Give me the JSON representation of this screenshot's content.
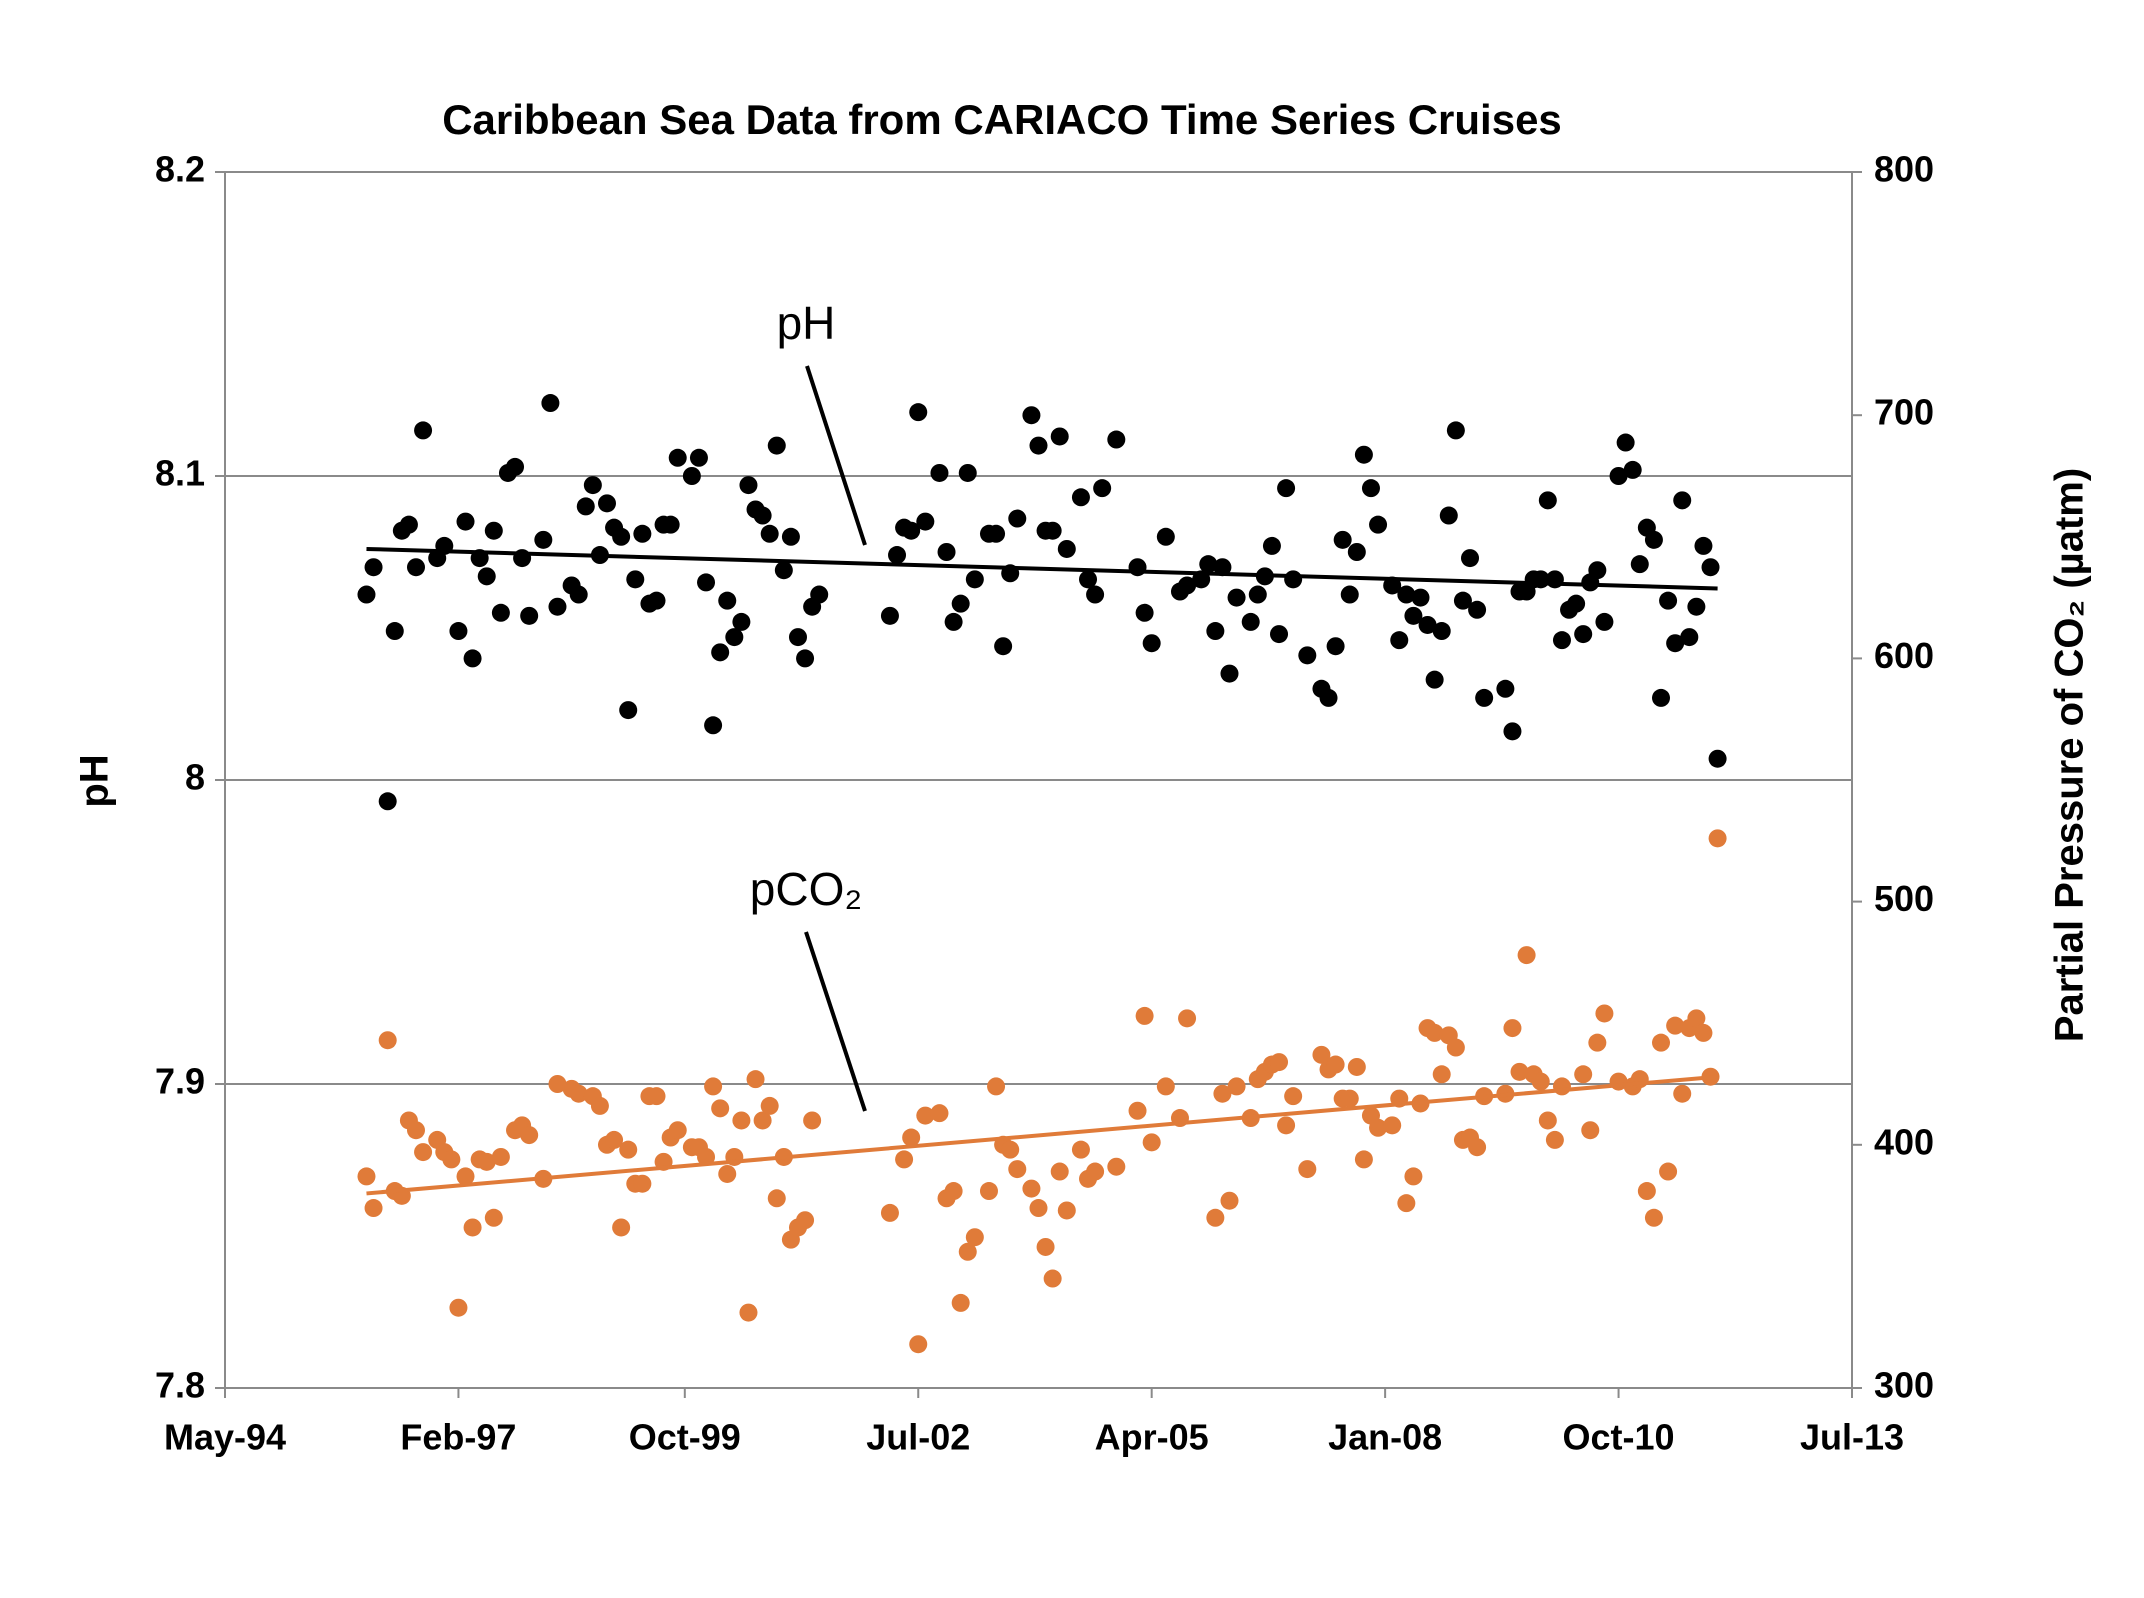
{
  "chart_data": {
    "type": "scatter",
    "title": "Caribbean Sea Data from CARIACO Time Series Cruises",
    "y_label": "pH",
    "y2_label": "Partial Pressure of CO₂ (µatm)",
    "xlim": [
      "1994-05",
      "2013-07"
    ],
    "xticks": [
      {
        "value": "1994-05",
        "label": "May-94"
      },
      {
        "value": "1997-02",
        "label": "Feb-97"
      },
      {
        "value": "1999-10",
        "label": "Oct-99"
      },
      {
        "value": "2002-07",
        "label": "Jul-02"
      },
      {
        "value": "2005-04",
        "label": "Apr-05"
      },
      {
        "value": "2008-01",
        "label": "Jan-08"
      },
      {
        "value": "2010-10",
        "label": "Oct-10"
      },
      {
        "value": "2013-07",
        "label": "Jul-13"
      }
    ],
    "ylim": [
      7.8,
      8.2
    ],
    "yticks": [
      7.8,
      7.9,
      8,
      8.1,
      8.2
    ],
    "y2lim": [
      300,
      800
    ],
    "y2ticks": [
      300,
      400,
      500,
      600,
      700,
      800
    ],
    "grid": true,
    "x": [
      "1996-01",
      "1996-02",
      "1996-04",
      "1996-05",
      "1996-06",
      "1996-07",
      "1996-08",
      "1996-09",
      "1996-11",
      "1996-12",
      "1997-01",
      "1997-02",
      "1997-03",
      "1997-04",
      "1997-05",
      "1997-06",
      "1997-07",
      "1997-08",
      "1997-09",
      "1997-10",
      "1997-11",
      "1997-12",
      "1998-02",
      "1998-03",
      "1998-04",
      "1998-06",
      "1998-07",
      "1998-08",
      "1998-09",
      "1998-10",
      "1998-11",
      "1998-12",
      "1999-01",
      "1999-02",
      "1999-03",
      "1999-04",
      "1999-05",
      "1999-06",
      "1999-07",
      "1999-08",
      "1999-09",
      "1999-11",
      "1999-12",
      "2000-01",
      "2000-02",
      "2000-03",
      "2000-04",
      "2000-05",
      "2000-06",
      "2000-07",
      "2000-08",
      "2000-09",
      "2000-10",
      "2000-11",
      "2000-12",
      "2001-01",
      "2001-02",
      "2001-03",
      "2001-04",
      "2001-05",
      "2002-03",
      "2002-04",
      "2002-05",
      "2002-06",
      "2002-07",
      "2002-08",
      "2002-10",
      "2002-11",
      "2002-12",
      "2003-01",
      "2003-02",
      "2003-03",
      "2003-05",
      "2003-06",
      "2003-07",
      "2003-08",
      "2003-09",
      "2003-11",
      "2003-12",
      "2004-01",
      "2004-02",
      "2004-03",
      "2004-04",
      "2004-06",
      "2004-07",
      "2004-08",
      "2004-09",
      "2004-11",
      "2005-02",
      "2005-03",
      "2005-04",
      "2005-06",
      "2005-08",
      "2005-09",
      "2005-11",
      "2005-12",
      "2006-01",
      "2006-02",
      "2006-03",
      "2006-04",
      "2006-06",
      "2006-07",
      "2006-08",
      "2006-09",
      "2006-10",
      "2006-11",
      "2006-12",
      "2007-02",
      "2007-04",
      "2007-05",
      "2007-06",
      "2007-07",
      "2007-08",
      "2007-09",
      "2007-10",
      "2007-11",
      "2007-12",
      "2008-02",
      "2008-03",
      "2008-04",
      "2008-05",
      "2008-06",
      "2008-07",
      "2008-08",
      "2008-09",
      "2008-10",
      "2008-11",
      "2008-12",
      "2009-01",
      "2009-02",
      "2009-03",
      "2009-06",
      "2009-07",
      "2009-08",
      "2009-09",
      "2009-10",
      "2009-11",
      "2009-12",
      "2010-01",
      "2010-02",
      "2010-03",
      "2010-04",
      "2010-05",
      "2010-06",
      "2010-07",
      "2010-08",
      "2010-10",
      "2010-11",
      "2010-12",
      "2011-01",
      "2011-02",
      "2011-03",
      "2011-04",
      "2011-05",
      "2011-06",
      "2011-07",
      "2011-08",
      "2011-09",
      "2011-10",
      "2011-11",
      "2011-12"
    ],
    "series": [
      {
        "name": "pH",
        "color": "#000000",
        "axis": "y",
        "values": [
          8.061,
          8.07,
          7.993,
          8.049,
          8.082,
          8.084,
          8.07,
          8.115,
          8.073,
          8.077,
          null,
          8.049,
          8.085,
          8.04,
          8.073,
          8.067,
          8.082,
          8.055,
          8.101,
          8.103,
          8.073,
          8.054,
          8.079,
          8.124,
          8.057,
          8.064,
          8.061,
          8.09,
          8.097,
          8.074,
          8.091,
          8.083,
          8.08,
          8.023,
          8.066,
          8.081,
          8.058,
          8.059,
          8.084,
          8.084,
          8.106,
          8.1,
          8.106,
          8.065,
          8.018,
          8.042,
          8.059,
          8.047,
          8.052,
          8.097,
          8.089,
          8.087,
          8.081,
          8.11,
          8.069,
          8.08,
          8.047,
          8.04,
          8.057,
          8.061,
          8.054,
          8.074,
          8.083,
          8.082,
          8.121,
          8.085,
          8.101,
          8.075,
          8.052,
          8.058,
          8.101,
          8.066,
          8.081,
          8.081,
          8.044,
          8.068,
          8.086,
          8.12,
          8.11,
          8.082,
          8.082,
          8.113,
          8.076,
          8.093,
          8.066,
          8.061,
          8.096,
          8.112,
          8.07,
          8.055,
          8.045,
          8.08,
          8.062,
          8.064,
          8.066,
          8.071,
          8.049,
          8.07,
          8.035,
          8.06,
          8.052,
          8.061,
          8.067,
          8.077,
          8.048,
          8.096,
          8.066,
          8.041,
          8.03,
          8.027,
          8.044,
          8.079,
          8.061,
          8.075,
          8.107,
          8.096,
          8.084,
          8.064,
          8.046,
          8.061,
          8.054,
          8.06,
          8.051,
          8.033,
          8.049,
          8.087,
          8.115,
          8.059,
          8.073,
          8.056,
          8.027,
          8.03,
          8.016,
          8.062,
          8.062,
          8.066,
          8.066,
          8.092,
          8.066,
          8.046,
          8.056,
          8.058,
          8.048,
          8.065,
          8.069,
          8.052,
          8.1,
          8.111,
          8.102,
          8.071,
          8.083,
          8.079,
          8.027,
          8.059,
          8.045,
          8.092,
          8.047,
          8.057,
          8.077,
          8.07,
          8.007
        ],
        "trendline": {
          "x": [
            "1996-01",
            "2011-12"
          ],
          "values": [
            8.076,
            8.063
          ]
        }
      },
      {
        "name": "pCO₂",
        "color": "#e07b39",
        "axis": "y2",
        "values": [
          387,
          374,
          443,
          381,
          379,
          410,
          406,
          397,
          402,
          397,
          394,
          333,
          387,
          366,
          394,
          393,
          370,
          395,
          null,
          406,
          408,
          404,
          386,
          null,
          425,
          423,
          421,
          null,
          420,
          416,
          400,
          402,
          366,
          398,
          384,
          384,
          420,
          420,
          393,
          403,
          406,
          399,
          399,
          395,
          424,
          415,
          388,
          395,
          410,
          331,
          427,
          410,
          416,
          378,
          395,
          361,
          366,
          369,
          410,
          null,
          372,
          null,
          394,
          403,
          318,
          412,
          413,
          378,
          381,
          335,
          356,
          362,
          381,
          424,
          400,
          398,
          390,
          382,
          374,
          358,
          345,
          389,
          373,
          398,
          386,
          389,
          null,
          391,
          414,
          453,
          401,
          424,
          411,
          452,
          null,
          null,
          370,
          421,
          377,
          424,
          411,
          427,
          430,
          433,
          434,
          408,
          420,
          390,
          437,
          431,
          433,
          419,
          419,
          432,
          394,
          412,
          407,
          408,
          419,
          376,
          387,
          417,
          448,
          446,
          429,
          445,
          440,
          402,
          403,
          399,
          420,
          421,
          448,
          430,
          478,
          429,
          426,
          410,
          402,
          424,
          null,
          null,
          429,
          406,
          442,
          454,
          426,
          null,
          424,
          427,
          381,
          370,
          442,
          389,
          449,
          421,
          448,
          452,
          446,
          428,
          526
        ],
        "trendline": {
          "x": [
            "1996-01",
            "2011-12"
          ],
          "values": [
            380,
            428
          ]
        }
      }
    ]
  }
}
